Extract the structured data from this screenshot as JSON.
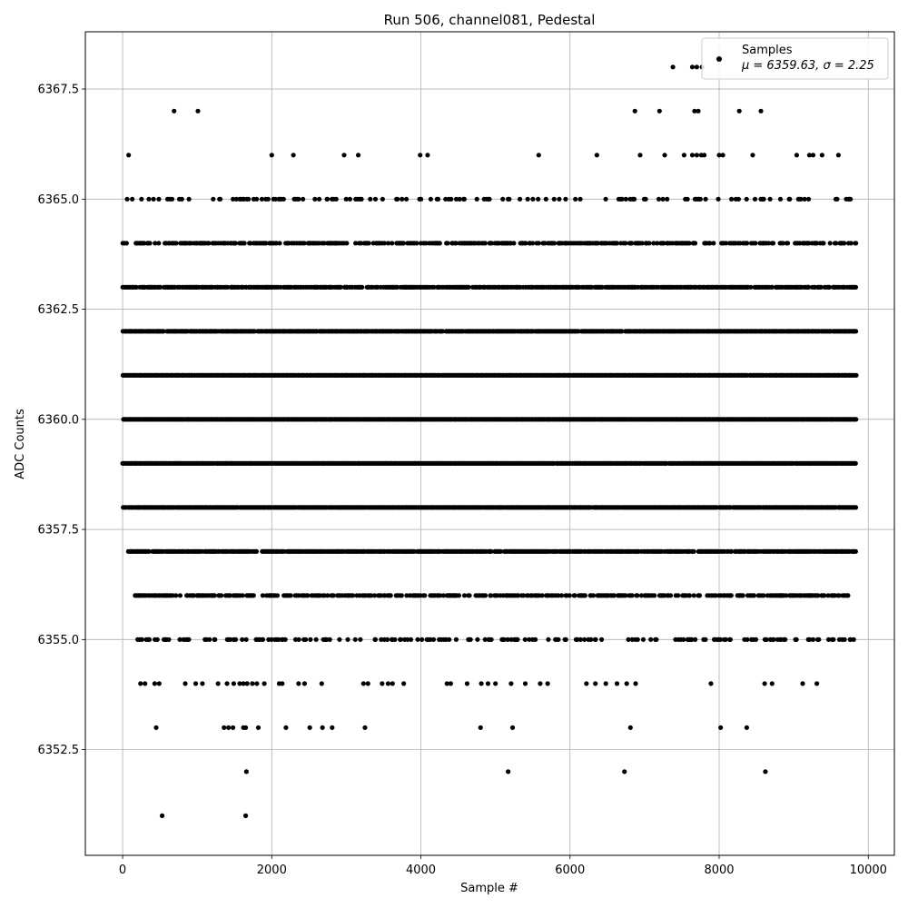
{
  "chart_data": {
    "type": "scatter",
    "title": "Run 506, channel081, Pedestal",
    "xlabel": "Sample #",
    "ylabel": "ADC Counts",
    "xlim": [
      -500,
      10350
    ],
    "ylim": [
      6350.1,
      6368.8
    ],
    "xticks": [
      0,
      2000,
      4000,
      6000,
      8000,
      10000
    ],
    "xtick_labels": [
      "0",
      "2000",
      "4000",
      "6000",
      "8000",
      "10000"
    ],
    "yticks": [
      6352.5,
      6355.0,
      6357.5,
      6360.0,
      6362.5,
      6365.0,
      6367.5
    ],
    "ytick_labels": [
      "6352.5",
      "6355.0",
      "6357.5",
      "6360.0",
      "6362.5",
      "6365.0",
      "6367.5"
    ],
    "grid": true,
    "legend": {
      "placement": "top-right",
      "entries": [
        {
          "name": "Samples",
          "stat_line": "μ = 6359.63, σ = 2.25"
        }
      ]
    },
    "marker_color": "#000000",
    "series": [
      {
        "name": "Samples",
        "x_range": [
          0,
          9840
        ],
        "n_samples": 9840,
        "mean": 6359.63,
        "std": 2.25,
        "points": [
          {
            "x": 530,
            "y": 6351
          },
          {
            "x": 1650,
            "y": 6351
          },
          {
            "x": 1660,
            "y": 6352
          },
          {
            "x": 5170,
            "y": 6352
          },
          {
            "x": 6730,
            "y": 6352
          },
          {
            "x": 8620,
            "y": 6352
          },
          {
            "x": 450,
            "y": 6353
          },
          {
            "x": 1360,
            "y": 6353
          },
          {
            "x": 1420,
            "y": 6353
          },
          {
            "x": 1480,
            "y": 6353
          },
          {
            "x": 1620,
            "y": 6353
          },
          {
            "x": 1650,
            "y": 6353
          },
          {
            "x": 1820,
            "y": 6353
          },
          {
            "x": 2190,
            "y": 6353
          },
          {
            "x": 2510,
            "y": 6353
          },
          {
            "x": 2680,
            "y": 6353
          },
          {
            "x": 2810,
            "y": 6353
          },
          {
            "x": 3250,
            "y": 6353
          },
          {
            "x": 4800,
            "y": 6353
          },
          {
            "x": 5230,
            "y": 6353
          },
          {
            "x": 6810,
            "y": 6353
          },
          {
            "x": 8020,
            "y": 6353
          },
          {
            "x": 8370,
            "y": 6353
          },
          {
            "x": 690,
            "y": 6367
          },
          {
            "x": 1010,
            "y": 6367
          },
          {
            "x": 6870,
            "y": 6367
          },
          {
            "x": 7200,
            "y": 6367
          },
          {
            "x": 7670,
            "y": 6367
          },
          {
            "x": 7720,
            "y": 6367
          },
          {
            "x": 8270,
            "y": 6367
          },
          {
            "x": 8560,
            "y": 6367
          },
          {
            "x": 7380,
            "y": 6368
          },
          {
            "x": 7640,
            "y": 6368
          },
          {
            "x": 7700,
            "y": 6368
          },
          {
            "x": 7770,
            "y": 6368
          },
          {
            "x": 80,
            "y": 6366
          },
          {
            "x": 2000,
            "y": 6366
          },
          {
            "x": 2290,
            "y": 6366
          },
          {
            "x": 2970,
            "y": 6366
          },
          {
            "x": 3160,
            "y": 6366
          },
          {
            "x": 3990,
            "y": 6366
          },
          {
            "x": 4090,
            "y": 6366
          },
          {
            "x": 5580,
            "y": 6366
          },
          {
            "x": 6360,
            "y": 6366
          },
          {
            "x": 6940,
            "y": 6366
          },
          {
            "x": 7270,
            "y": 6366
          },
          {
            "x": 7530,
            "y": 6366
          },
          {
            "x": 7640,
            "y": 6366
          },
          {
            "x": 7700,
            "y": 6366
          },
          {
            "x": 7760,
            "y": 6366
          },
          {
            "x": 7800,
            "y": 6366
          },
          {
            "x": 8000,
            "y": 6366
          },
          {
            "x": 8050,
            "y": 6366
          },
          {
            "x": 8450,
            "y": 6366
          },
          {
            "x": 9040,
            "y": 6366
          },
          {
            "x": 9210,
            "y": 6366
          },
          {
            "x": 9260,
            "y": 6366
          },
          {
            "x": 9380,
            "y": 6366
          },
          {
            "x": 9600,
            "y": 6366
          },
          {
            "x": 240,
            "y": 6354
          },
          {
            "x": 300,
            "y": 6354
          },
          {
            "x": 430,
            "y": 6354
          },
          {
            "x": 490,
            "y": 6354
          },
          {
            "x": 840,
            "y": 6354
          },
          {
            "x": 980,
            "y": 6354
          },
          {
            "x": 1070,
            "y": 6354
          },
          {
            "x": 1280,
            "y": 6354
          },
          {
            "x": 1400,
            "y": 6354
          },
          {
            "x": 1490,
            "y": 6354
          },
          {
            "x": 1570,
            "y": 6354
          },
          {
            "x": 1620,
            "y": 6354
          },
          {
            "x": 1670,
            "y": 6354
          },
          {
            "x": 1740,
            "y": 6354
          },
          {
            "x": 1800,
            "y": 6354
          },
          {
            "x": 1900,
            "y": 6354
          },
          {
            "x": 2100,
            "y": 6354
          },
          {
            "x": 2140,
            "y": 6354
          },
          {
            "x": 2360,
            "y": 6354
          },
          {
            "x": 2440,
            "y": 6354
          },
          {
            "x": 2670,
            "y": 6354
          },
          {
            "x": 3230,
            "y": 6354
          },
          {
            "x": 3290,
            "y": 6354
          },
          {
            "x": 3480,
            "y": 6354
          },
          {
            "x": 3560,
            "y": 6354
          },
          {
            "x": 3620,
            "y": 6354
          },
          {
            "x": 3770,
            "y": 6354
          },
          {
            "x": 4350,
            "y": 6354
          },
          {
            "x": 4400,
            "y": 6354
          },
          {
            "x": 4620,
            "y": 6354
          },
          {
            "x": 4810,
            "y": 6354
          },
          {
            "x": 4900,
            "y": 6354
          },
          {
            "x": 5000,
            "y": 6354
          },
          {
            "x": 5210,
            "y": 6354
          },
          {
            "x": 5400,
            "y": 6354
          },
          {
            "x": 5600,
            "y": 6354
          },
          {
            "x": 5700,
            "y": 6354
          },
          {
            "x": 6220,
            "y": 6354
          },
          {
            "x": 6340,
            "y": 6354
          },
          {
            "x": 6480,
            "y": 6354
          },
          {
            "x": 6630,
            "y": 6354
          },
          {
            "x": 6760,
            "y": 6354
          },
          {
            "x": 6880,
            "y": 6354
          },
          {
            "x": 7890,
            "y": 6354
          },
          {
            "x": 8610,
            "y": 6354
          },
          {
            "x": 8710,
            "y": 6354
          },
          {
            "x": 9120,
            "y": 6354
          },
          {
            "x": 9310,
            "y": 6354
          }
        ],
        "dense_levels": [
          {
            "y": 6355,
            "x_start": 170,
            "x_end": 9820,
            "density": 0.28
          },
          {
            "y": 6356,
            "x_start": 150,
            "x_end": 9820,
            "density": 0.5
          },
          {
            "y": 6357,
            "x_start": 70,
            "x_end": 9840,
            "density": 0.82
          },
          {
            "y": 6358,
            "x_start": 0,
            "x_end": 9840,
            "density": 0.97
          },
          {
            "y": 6359,
            "x_start": 0,
            "x_end": 9840,
            "density": 0.99
          },
          {
            "y": 6360,
            "x_start": 0,
            "x_end": 9840,
            "density": 1.0
          },
          {
            "y": 6361,
            "x_start": 0,
            "x_end": 9840,
            "density": 0.99
          },
          {
            "y": 6362,
            "x_start": 0,
            "x_end": 9840,
            "density": 0.97
          },
          {
            "y": 6363,
            "x_start": 0,
            "x_end": 9840,
            "density": 0.72
          },
          {
            "y": 6364,
            "x_start": 0,
            "x_end": 9840,
            "density": 0.5
          },
          {
            "y": 6365,
            "x_start": 0,
            "x_end": 9800,
            "density": 0.2
          }
        ]
      }
    ]
  }
}
